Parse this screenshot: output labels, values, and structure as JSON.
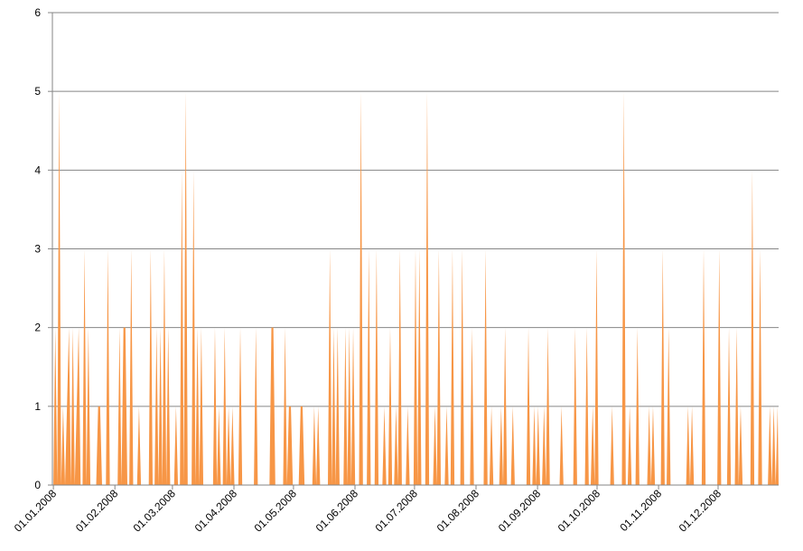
{
  "chart_data": {
    "type": "area",
    "title": "",
    "xlabel": "",
    "ylabel": "",
    "x_start": "01.01.2008",
    "x_end": "31.12.2008",
    "x_tick_labels": [
      "01.01.2008",
      "01.02.2008",
      "01.03.2008",
      "01.04.2008",
      "01.05.2008",
      "01.06.2008",
      "01.07.2008",
      "01.08.2008",
      "01.09.2008",
      "01.10.2008",
      "01.11.2008",
      "01.12.2008"
    ],
    "y_tick_labels": [
      "0",
      "1",
      "2",
      "3",
      "4",
      "5",
      "6"
    ],
    "ylim": [
      0,
      6
    ],
    "grid": true,
    "legend": "none",
    "series": [
      {
        "color": "#f79646",
        "values": [
          0,
          2,
          0,
          5,
          0,
          1,
          0,
          1,
          2,
          0,
          2,
          0,
          1,
          2,
          0,
          0,
          3,
          0,
          2,
          0,
          0,
          0,
          0,
          1,
          1,
          0,
          0,
          0,
          3,
          0,
          0,
          0,
          0,
          0,
          2,
          0,
          2,
          2,
          0,
          0,
          3,
          0,
          0,
          0,
          1,
          0,
          0,
          0,
          0,
          0,
          3,
          0,
          0,
          2,
          0,
          2,
          0,
          3,
          0,
          2,
          0,
          0,
          0,
          1,
          0,
          0,
          4,
          0,
          5,
          0,
          0,
          0,
          4,
          0,
          2,
          0,
          2,
          0,
          0,
          0,
          0,
          0,
          0,
          2,
          0,
          1,
          0,
          0,
          2,
          0,
          1,
          0,
          1,
          0,
          0,
          0,
          2,
          0,
          0,
          0,
          0,
          0,
          0,
          0,
          2,
          0,
          0,
          0,
          0,
          0,
          0,
          0,
          2,
          2,
          0,
          0,
          0,
          0,
          0,
          2,
          0,
          1,
          1,
          0,
          0,
          0,
          0,
          1,
          1,
          0,
          0,
          0,
          0,
          0,
          1,
          0,
          1,
          0,
          0,
          0,
          0,
          0,
          3,
          0,
          2,
          0,
          2,
          0,
          0,
          0,
          2,
          0,
          2,
          0,
          2,
          0,
          0,
          0,
          5,
          0,
          0,
          0,
          3,
          0,
          0,
          0,
          3,
          0,
          0,
          0,
          1,
          0,
          0,
          2,
          0,
          0,
          1,
          0,
          3,
          0,
          0,
          0,
          1,
          0,
          0,
          0,
          3,
          0,
          3,
          0,
          0,
          0,
          5,
          0,
          0,
          0,
          1,
          0,
          3,
          0,
          0,
          0,
          1,
          0,
          0,
          3,
          0,
          0,
          0,
          0,
          3,
          0,
          0,
          0,
          0,
          2,
          0,
          0,
          0,
          0,
          0,
          0,
          3,
          0,
          0,
          1,
          0,
          0,
          0,
          0,
          1,
          0,
          2,
          0,
          0,
          0,
          1,
          0,
          0,
          0,
          0,
          0,
          0,
          0,
          2,
          0,
          0,
          1,
          0,
          1,
          0,
          0,
          1,
          0,
          2,
          0,
          0,
          0,
          0,
          0,
          0,
          1,
          0,
          0,
          0,
          0,
          0,
          0,
          2,
          0,
          0,
          0,
          0,
          0,
          2,
          0,
          0,
          1,
          0,
          3,
          0,
          0,
          0,
          0,
          0,
          0,
          0,
          1,
          0,
          0,
          0,
          0,
          0,
          5,
          0,
          0,
          1,
          0,
          0,
          0,
          2,
          0,
          0,
          0,
          0,
          0,
          1,
          0,
          1,
          0,
          0,
          0,
          0,
          3,
          0,
          0,
          2,
          0,
          0,
          0,
          0,
          0,
          0,
          0,
          0,
          0,
          1,
          0,
          1,
          0,
          0,
          0,
          0,
          0,
          3,
          0,
          0,
          0,
          0,
          0,
          0,
          0,
          3,
          0,
          0,
          0,
          0,
          2,
          0,
          0,
          0,
          2,
          0,
          1,
          0,
          0,
          0,
          0,
          0,
          4,
          0,
          0,
          0,
          3,
          0,
          0,
          0,
          0,
          1,
          0,
          1,
          0,
          1
        ]
      }
    ]
  },
  "colors": {
    "series": "#f79646",
    "gridline": "#868686",
    "axis": "#868686",
    "background": "#ffffff"
  }
}
